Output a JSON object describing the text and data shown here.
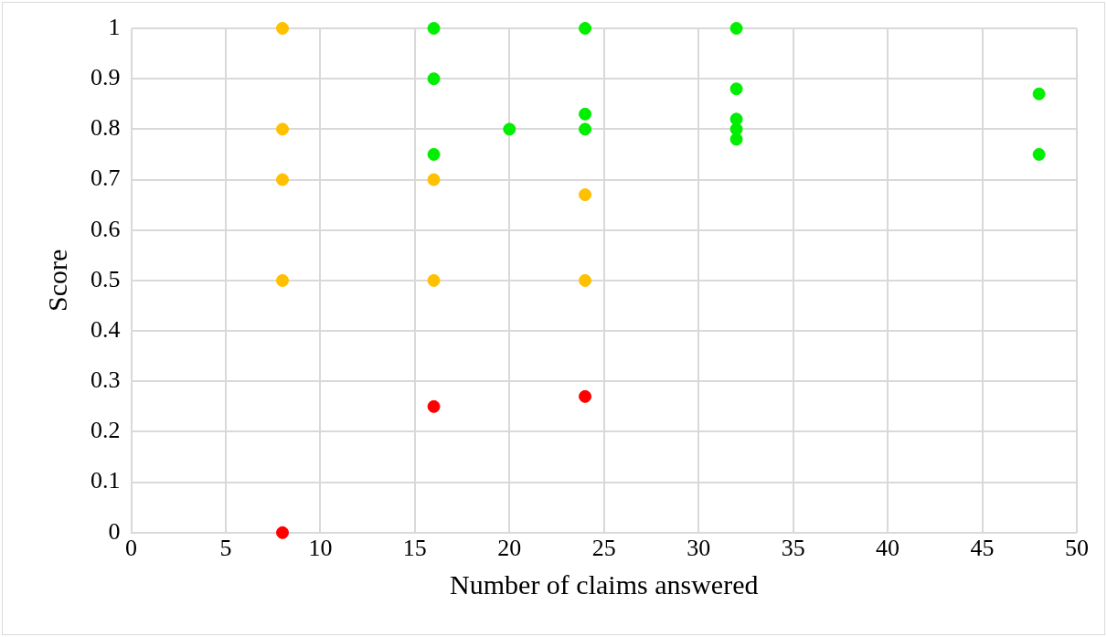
{
  "chart_data": {
    "type": "scatter",
    "xlabel": "Number of claims answered",
    "ylabel": "Score",
    "xlim": [
      0,
      50
    ],
    "xticks": [
      0,
      5,
      10,
      15,
      20,
      25,
      30,
      35,
      40,
      45,
      50
    ],
    "ylim": [
      0,
      1
    ],
    "yticks": [
      0,
      0.1,
      0.2,
      0.3,
      0.4,
      0.5,
      0.6,
      0.7,
      0.8,
      0.9,
      1
    ],
    "grid": true,
    "legend": false,
    "marker": "circle",
    "series": [
      {
        "color": "#ffc000",
        "x": [
          8,
          8,
          8,
          8,
          16,
          16,
          24,
          24
        ],
        "values": [
          1,
          0.8,
          0.7,
          0.5,
          0.7,
          0.5,
          0.67,
          0.5
        ]
      },
      {
        "color": "#ff0000",
        "x": [
          8,
          16,
          24
        ],
        "values": [
          0,
          0.25,
          0.27
        ]
      },
      {
        "color": "#00ee00",
        "x": [
          16,
          16,
          16,
          20,
          24,
          24,
          24,
          32,
          32,
          32,
          32,
          32,
          48,
          48
        ],
        "values": [
          1,
          0.9,
          0.75,
          0.8,
          1,
          0.83,
          0.8,
          1,
          0.88,
          0.82,
          0.8,
          0.78,
          0.87,
          0.75
        ]
      }
    ]
  }
}
